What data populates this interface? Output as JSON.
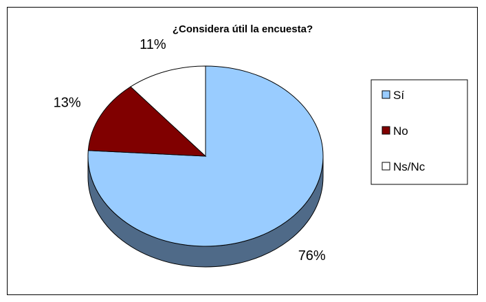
{
  "chart_data": {
    "type": "pie",
    "title": "¿Considera útil la encuesta?",
    "slices": [
      {
        "label": "Sí",
        "value": 76,
        "data_label": "76%",
        "color": "#99CCFF",
        "side_color": "#4F6A88"
      },
      {
        "label": "No",
        "value": 13,
        "data_label": "13%",
        "color": "#800000",
        "side_color": "#4D0000"
      },
      {
        "label": "Ns/Nc",
        "value": 11,
        "data_label": "11%",
        "color": "#FFFFFF",
        "side_color": "#B5B5B5"
      }
    ],
    "style": "3d-pie",
    "legend_position": "right"
  }
}
